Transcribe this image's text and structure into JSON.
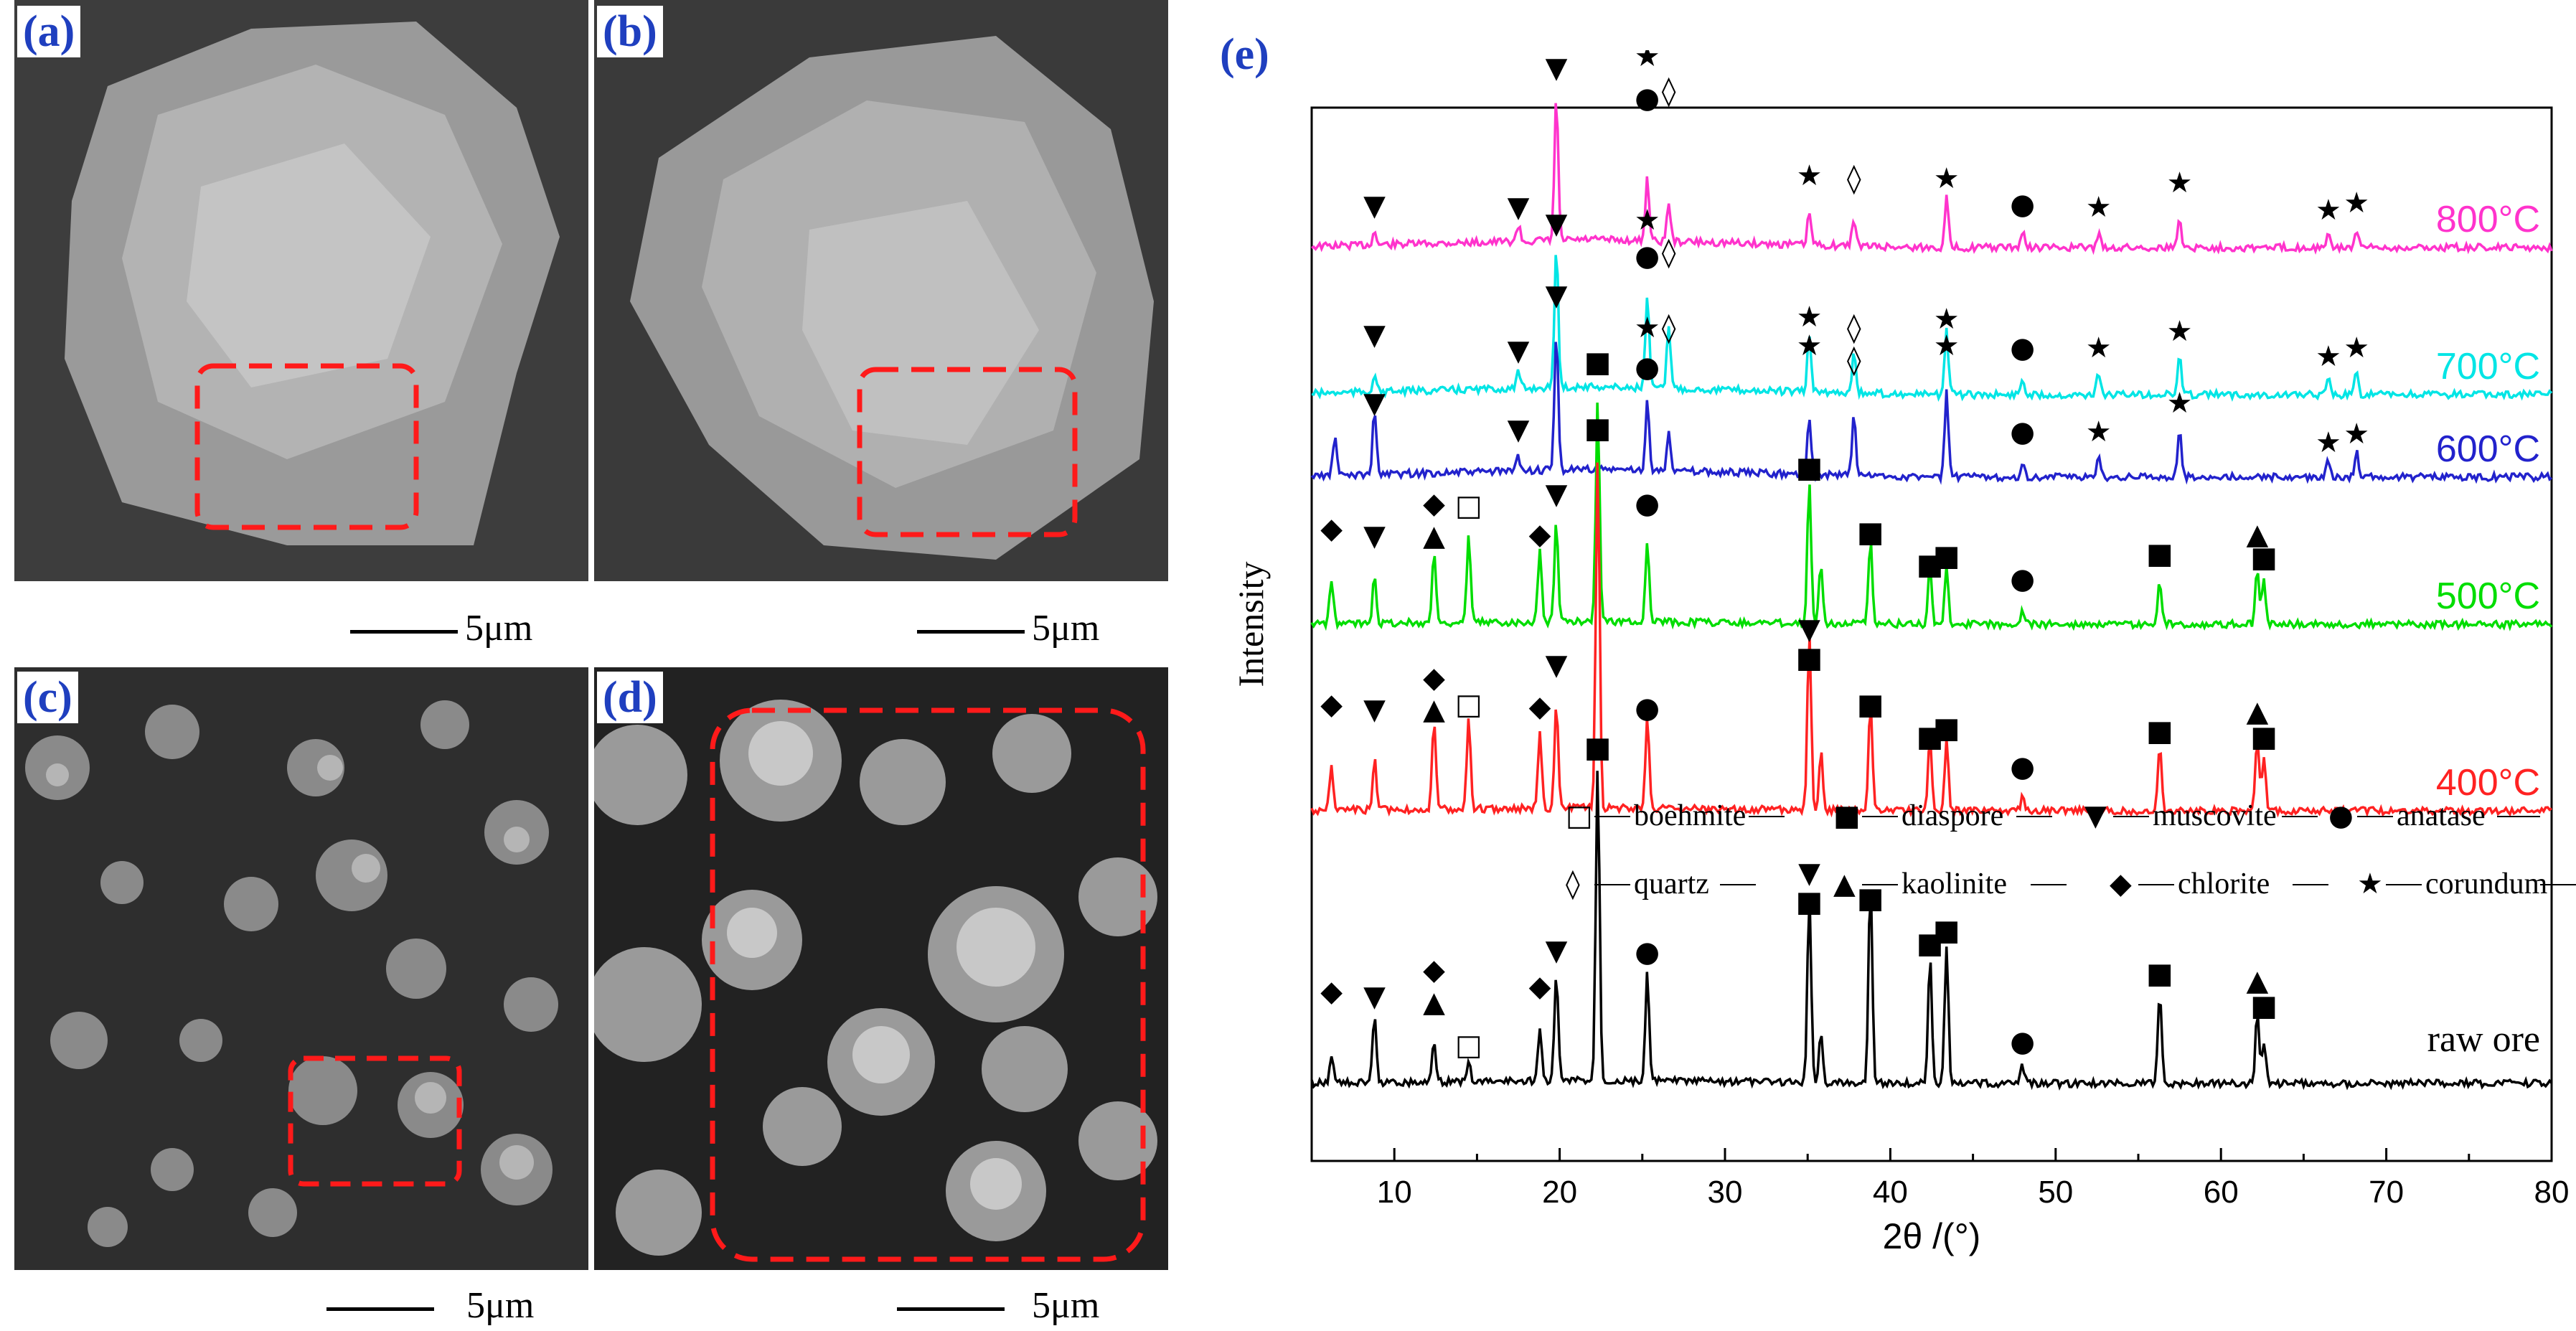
{
  "figure": {
    "panels": [
      {
        "label": "(a)",
        "scale": "5μm"
      },
      {
        "label": "(b)",
        "scale": "5μm"
      },
      {
        "label": "(c)",
        "scale": "5μm"
      },
      {
        "label": "(d)",
        "scale": "5μm"
      }
    ],
    "chart_label": "(e)"
  },
  "chart_data": {
    "type": "line",
    "xlabel": "2θ /(°)",
    "ylabel": "Intensity",
    "xlim": [
      5,
      80
    ],
    "xticks": [
      10,
      20,
      30,
      40,
      50,
      60,
      70,
      80
    ],
    "grid": false,
    "series": [
      {
        "name": "800°C",
        "color": "#ff33cc"
      },
      {
        "name": "700°C",
        "color": "#00e5e5"
      },
      {
        "name": "600°C",
        "color": "#2222cc"
      },
      {
        "name": "500°C",
        "color": "#00dd00"
      },
      {
        "name": "400°C",
        "color": "#ff2222"
      },
      {
        "name": "raw ore",
        "color": "#000000"
      }
    ],
    "legend": [
      {
        "symbol": "□",
        "text": "boehmite"
      },
      {
        "symbol": "■",
        "text": "diaspore"
      },
      {
        "symbol": "▼",
        "text": "muscovite"
      },
      {
        "symbol": "●",
        "text": "anatase"
      },
      {
        "symbol": "◊",
        "text": "quartz"
      },
      {
        "symbol": "▲",
        "text": "kaolinite"
      },
      {
        "symbol": "◆",
        "text": "chlorite"
      },
      {
        "symbol": "★",
        "text": "corundum"
      }
    ]
  }
}
